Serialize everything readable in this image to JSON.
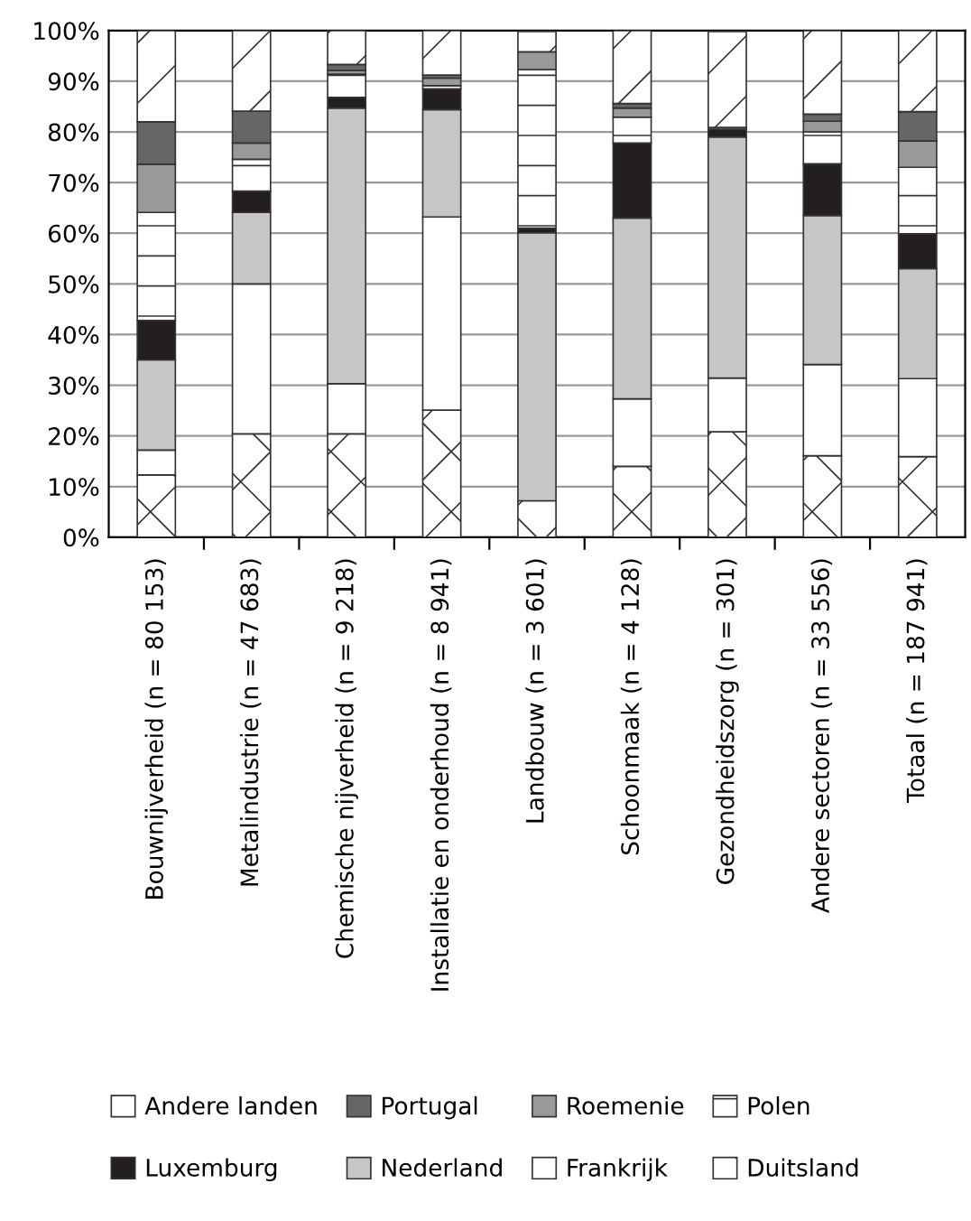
{
  "chart_data": {
    "type": "bar",
    "stacked": true,
    "categories": [
      "Bouwnijverheid (n = 80 153)",
      "Metalindustrie (n = 47 683)",
      "Chemische nijverheid (n = 9 218)",
      "Installatie en onderhoud (n = 8 941)",
      "Landbouw (n = 3 601)",
      "Schoonmaak (n = 4 128)",
      "Gezondheidszorg (n = 301)",
      "Andere sectoren (n = 33 556)",
      "Totaal (n = 187 941)"
    ],
    "series": [
      {
        "name": "Duitsland",
        "color": "#ffffff",
        "values": [
          12.3,
          20.4,
          20.4,
          25.1,
          7.2,
          14.0,
          20.8,
          16.1,
          15.9
        ]
      },
      {
        "name": "Frankrijk",
        "color": "#ffffff",
        "values": [
          4.9,
          29.6,
          9.9,
          38.1,
          null,
          13.3,
          10.6,
          18.0,
          15.4
        ]
      },
      {
        "name": "Nederland",
        "color": "#c6c6c6",
        "values": [
          17.8,
          14.1,
          54.4,
          21.2,
          52.9,
          35.7,
          47.6,
          29.4,
          21.7
        ]
      },
      {
        "name": "Luxemburg",
        "color": "#231f20",
        "values": [
          7.8,
          4.2,
          2.1,
          4.1,
          0.9,
          14.8,
          1.5,
          10.2,
          6.9
        ]
      },
      {
        "name": "Polen",
        "color": "#ffffff",
        "values": [
          21.3,
          6.3,
          4.6,
          0.6,
          31.3,
          5.1,
          null,
          6.3,
          13.1
        ]
      },
      {
        "name": "Roemenie",
        "color": "#999999",
        "values": [
          9.5,
          3.2,
          0.7,
          1.5,
          3.5,
          1.8,
          null,
          2.1,
          5.2
        ]
      },
      {
        "name": "Portugal",
        "color": "#666666",
        "values": [
          8.4,
          6.3,
          1.2,
          0.6,
          null,
          0.9,
          0.4,
          1.4,
          5.8
        ]
      },
      {
        "name": "Andere landen",
        "color": "#ffffff",
        "values": [
          18.0,
          15.9,
          6.7,
          8.8,
          4.0,
          14.4,
          18.9,
          16.5,
          16.0
        ]
      }
    ],
    "ylim": [
      0,
      100
    ],
    "yticks": [
      {
        "value": 0,
        "label": "0%"
      },
      {
        "value": 10,
        "label": "10%"
      },
      {
        "value": 20,
        "label": "20%"
      },
      {
        "value": 30,
        "label": "30%"
      },
      {
        "value": 40,
        "label": "40%"
      },
      {
        "value": 50,
        "label": "50%"
      },
      {
        "value": 60,
        "label": "60%"
      },
      {
        "value": 70,
        "label": "70%"
      },
      {
        "value": 80,
        "label": "80%"
      },
      {
        "value": 90,
        "label": "90%"
      },
      {
        "value": 100,
        "label": "100%"
      }
    ],
    "grid": "y",
    "legend": "bottom"
  }
}
